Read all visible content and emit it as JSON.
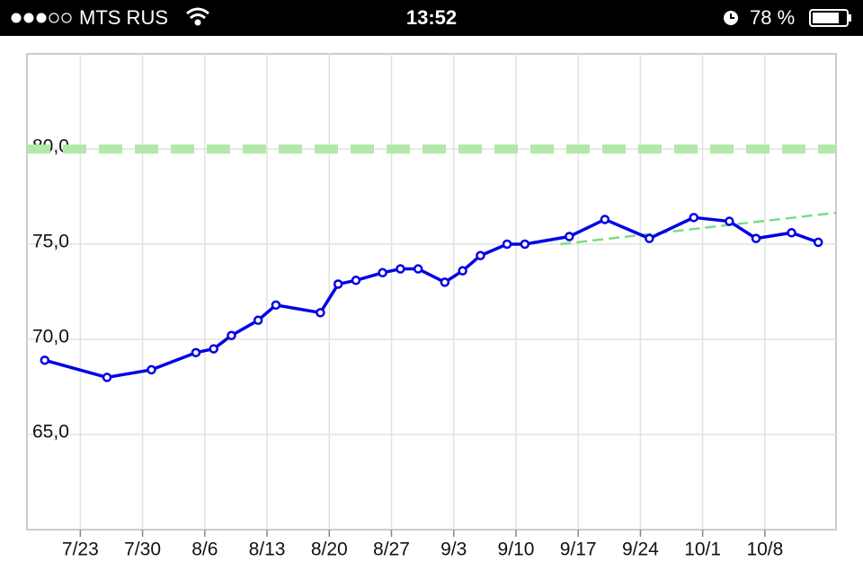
{
  "status_bar": {
    "carrier": "MTS RUS",
    "time": "13:52",
    "battery": "78 %"
  },
  "chart_data": {
    "type": "line",
    "x": [
      "7/19",
      "7/26",
      "7/31",
      "8/5",
      "8/7",
      "8/9",
      "8/12",
      "8/14",
      "8/19",
      "8/21",
      "8/23",
      "8/26",
      "8/28",
      "8/30",
      "9/2",
      "9/4",
      "9/6",
      "9/9",
      "9/11",
      "9/16",
      "9/20",
      "9/25",
      "9/30",
      "10/4",
      "10/7",
      "10/11",
      "10/14"
    ],
    "series": [
      {
        "color": "#0000e6",
        "values": [
          68.9,
          68.0,
          68.4,
          69.3,
          69.5,
          70.2,
          71.0,
          71.8,
          71.4,
          72.9,
          73.1,
          73.5,
          73.7,
          73.7,
          73.0,
          73.6,
          74.4,
          75.0,
          75.0,
          75.4,
          76.3,
          75.3,
          76.4,
          76.2,
          75.3,
          75.6,
          75.1
        ]
      }
    ],
    "trend": {
      "color": "#7fdc7f",
      "x": [
        "9/15",
        "10/16"
      ],
      "values": [
        75.0,
        76.65
      ]
    },
    "target": {
      "color": "#b2e8a8",
      "value": 80
    },
    "xlim": [
      "7/17",
      "10/16"
    ],
    "xticks": [
      "7/23",
      "7/30",
      "8/6",
      "8/13",
      "8/20",
      "8/27",
      "9/3",
      "9/10",
      "9/17",
      "9/24",
      "10/1",
      "10/8"
    ],
    "ylim": [
      60,
      85
    ],
    "yticks": [
      {
        "value": 65,
        "label": "65,0"
      },
      {
        "value": 70,
        "label": "70,0"
      },
      {
        "value": 75,
        "label": "75,0"
      },
      {
        "value": 80,
        "label": "80,0"
      }
    ],
    "grid": true
  }
}
